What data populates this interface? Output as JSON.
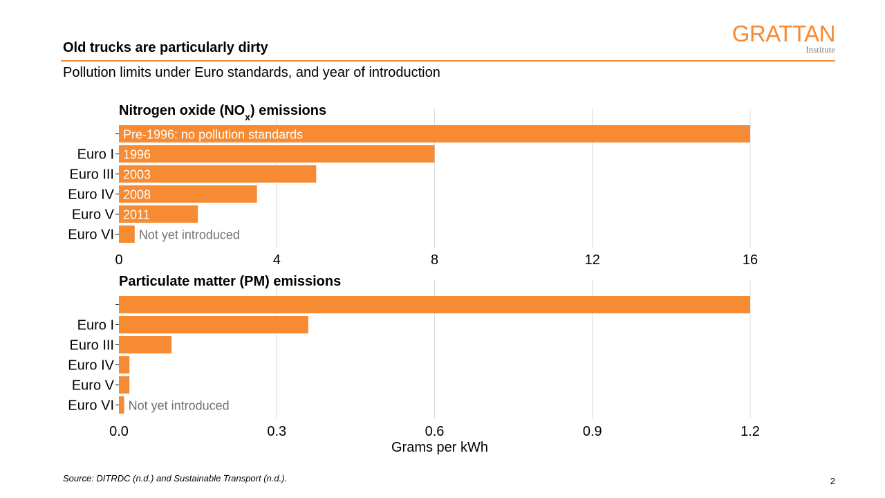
{
  "slide": {
    "title": "Old trucks are particularly dirty",
    "subtitle": "Pollution limits under Euro standards, and year of introduction",
    "source": "Source: DITRDC (n.d.) and Sustainable Transport (n.d.).",
    "page_number": "2",
    "logo_word": "GRATTAN",
    "logo_sub": "Institute"
  },
  "colors": {
    "bar": "#F68B33",
    "grid": "#d9d9d9",
    "inside_label": "#ffffff",
    "outside_label": "#707070"
  },
  "chart_data": [
    {
      "type": "bar",
      "orientation": "horizontal",
      "title": "Nitrogen oxide (NO",
      "title_sub": "x",
      "title_end": ") emissions",
      "categories": [
        "",
        "Euro I",
        "Euro III",
        "Euro IV",
        "Euro V",
        "Euro VI"
      ],
      "values": [
        16,
        8,
        5,
        3.5,
        2,
        0.4
      ],
      "bar_labels": [
        "Pre-1996: no pollution standards",
        "1996",
        "2003",
        "2008",
        "2011",
        "Not yet introduced"
      ],
      "xlim": [
        0,
        16
      ],
      "ticks": [
        0,
        4,
        8,
        12,
        16
      ],
      "tick_labels": [
        "0",
        "4",
        "8",
        "12",
        "16"
      ],
      "grid": true,
      "xlabel": ""
    },
    {
      "type": "bar",
      "orientation": "horizontal",
      "title": "Particulate matter (PM) emissions",
      "categories": [
        "",
        "Euro I",
        "Euro III",
        "Euro IV",
        "Euro V",
        "Euro VI"
      ],
      "values": [
        1.2,
        0.36,
        0.1,
        0.02,
        0.02,
        0.01
      ],
      "bar_labels": [
        "",
        "",
        "",
        "",
        "",
        "Not yet introduced"
      ],
      "xlim": [
        0,
        1.2
      ],
      "ticks": [
        0,
        0.3,
        0.6,
        0.9,
        1.2
      ],
      "tick_labels": [
        "0.0",
        "0.3",
        "0.6",
        "0.9",
        "1.2"
      ],
      "grid": true,
      "xlabel": "Grams per kWh"
    }
  ]
}
